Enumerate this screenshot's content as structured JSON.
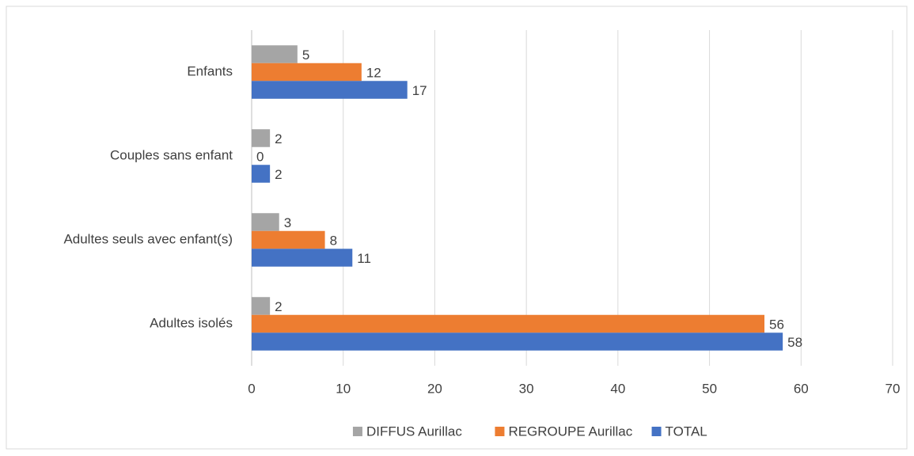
{
  "chart_data": {
    "type": "hbar",
    "categories": [
      "Enfants",
      "Couples sans enfant",
      "Adultes seuls avec enfant(s)",
      "Adultes isolés"
    ],
    "series": [
      {
        "name": "DIFFUS Aurillac",
        "color": "#a5a5a5",
        "values": [
          5,
          2,
          3,
          2
        ]
      },
      {
        "name": "REGROUPE Aurillac",
        "color": "#ed7d31",
        "values": [
          12,
          0,
          8,
          56
        ]
      },
      {
        "name": "TOTAL",
        "color": "#4472c4",
        "values": [
          17,
          2,
          11,
          58
        ]
      }
    ],
    "xlim": [
      0,
      70
    ],
    "xticks": [
      0,
      10,
      20,
      30,
      40,
      50,
      60,
      70
    ],
    "grid": true,
    "legend": "bottom"
  }
}
